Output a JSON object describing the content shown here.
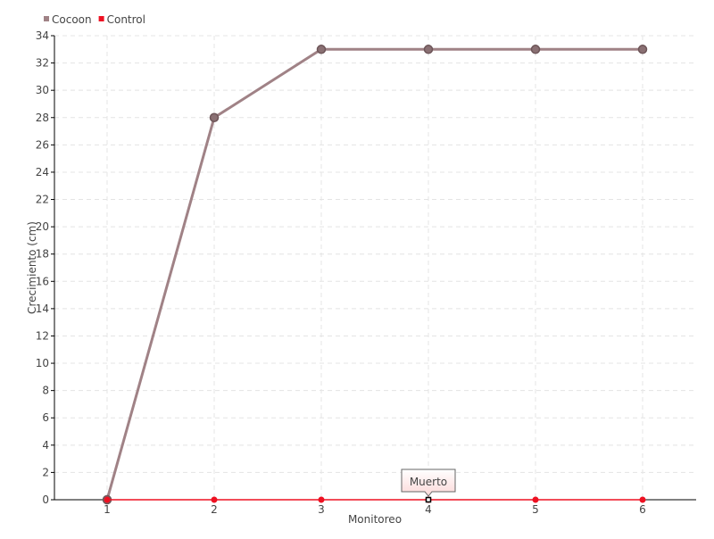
{
  "chart_data": {
    "type": "line",
    "title": "",
    "xlabel": "Monitoreo",
    "ylabel": "Crecimiento (cm)",
    "x": [
      1,
      2,
      3,
      4,
      5,
      6
    ],
    "ylim": [
      0,
      34
    ],
    "yticks": [
      0,
      2,
      4,
      6,
      8,
      10,
      12,
      14,
      16,
      18,
      20,
      22,
      24,
      26,
      28,
      30,
      32,
      34
    ],
    "grid": true,
    "legend_position": "top-left",
    "series": [
      {
        "name": "Cocoon",
        "color": "#a08286",
        "values": [
          0,
          28,
          33,
          33,
          33,
          33
        ]
      },
      {
        "name": "Control",
        "color": "#ee1122",
        "values": [
          0,
          0,
          0,
          0,
          0,
          0
        ]
      }
    ],
    "tooltip": {
      "text": "Muerto",
      "series": "Control",
      "x": 4,
      "y": 0
    }
  }
}
